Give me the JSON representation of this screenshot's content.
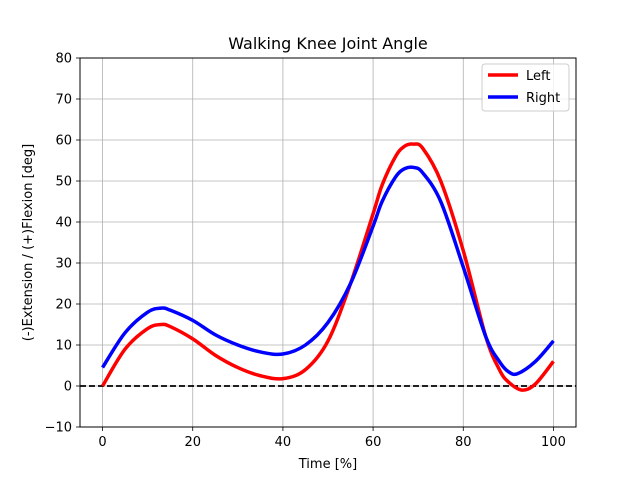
{
  "chart_data": {
    "type": "line",
    "title": "Walking Knee Joint Angle",
    "xlabel": "Time [%]",
    "ylabel": "(-)Extension / (+)Flexion [deg]",
    "xlim": [
      -5,
      105
    ],
    "ylim": [
      -10,
      80
    ],
    "xticks": [
      0,
      20,
      40,
      60,
      80,
      100
    ],
    "yticks": [
      -10,
      0,
      10,
      20,
      30,
      40,
      50,
      60,
      70,
      80
    ],
    "grid": true,
    "legend_position": "top-right",
    "reference_line": {
      "y": 0,
      "style": "dashed",
      "color": "#000000"
    },
    "series": [
      {
        "name": "Left",
        "color": "#ff0000",
        "x": [
          0,
          5,
          10,
          13,
          15,
          20,
          25,
          30,
          35,
          40,
          45,
          50,
          55,
          60,
          62,
          65,
          67,
          69,
          71,
          75,
          80,
          85,
          88,
          90,
          93,
          96,
          100
        ],
        "y": [
          0,
          9,
          14,
          15,
          14.5,
          11.5,
          7.5,
          4.5,
          2.5,
          1.8,
          4,
          11,
          25,
          42,
          49,
          56,
          58.5,
          59,
          58,
          50,
          33,
          12,
          4,
          1,
          -1,
          0.5,
          6
        ]
      },
      {
        "name": "Right",
        "color": "#0000ff",
        "x": [
          0,
          5,
          10,
          13,
          15,
          20,
          25,
          30,
          35,
          40,
          45,
          50,
          55,
          60,
          62,
          65,
          67,
          69,
          71,
          75,
          80,
          85,
          88,
          90,
          92,
          96,
          100
        ],
        "y": [
          4.5,
          13,
          18,
          19,
          18.5,
          16,
          12.5,
          10,
          8.3,
          7.8,
          10,
          15.5,
          25,
          39,
          45,
          51,
          53,
          53.3,
          52,
          45,
          29,
          12,
          6,
          3.5,
          3,
          6,
          11
        ]
      }
    ]
  }
}
